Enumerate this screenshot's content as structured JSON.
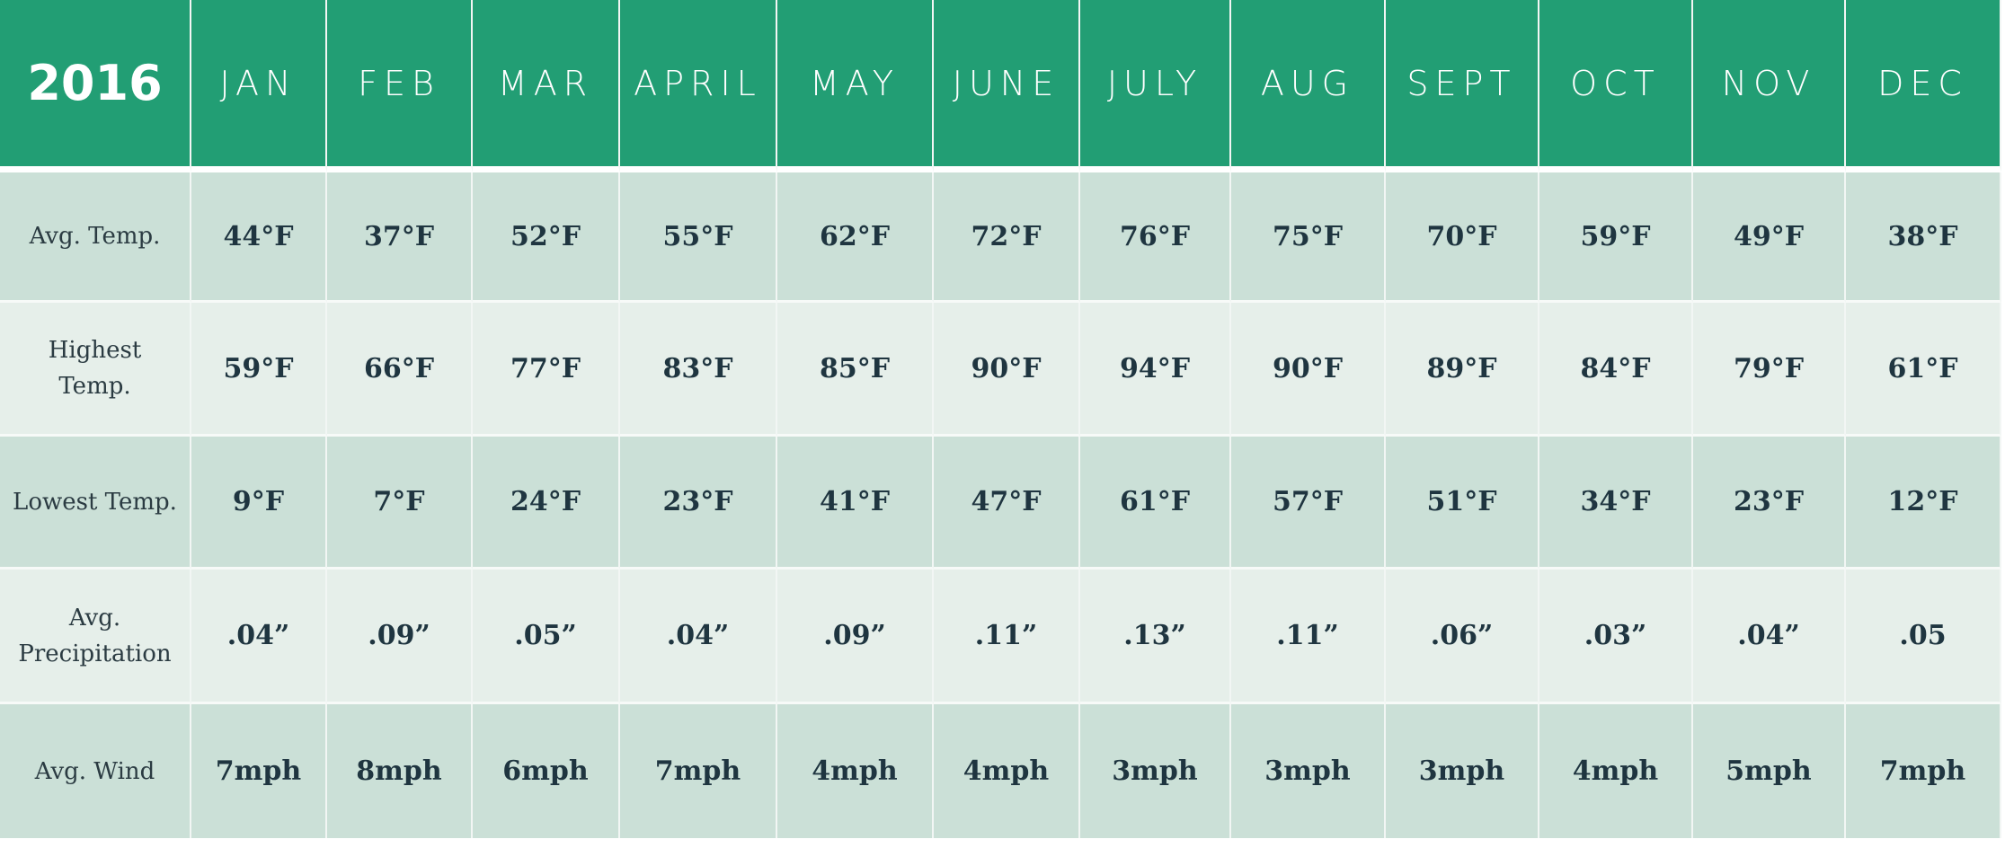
{
  "header": {
    "year": "2016",
    "months": [
      "JAN",
      "FEB",
      "MAR",
      "APRIL",
      "MAY",
      "JUNE",
      "JULY",
      "AUG",
      "SEPT",
      "OCT",
      "NOV",
      "DEC"
    ]
  },
  "rows": [
    {
      "label": "Avg. Temp.",
      "values": [
        "44°F",
        "37°F",
        "52°F",
        "55°F",
        "62°F",
        "72°F",
        "76°F",
        "75°F",
        "70°F",
        "59°F",
        "49°F",
        "38°F"
      ]
    },
    {
      "label": "Highest Temp.",
      "values": [
        "59°F",
        "66°F",
        "77°F",
        "83°F",
        "85°F",
        "90°F",
        "94°F",
        "90°F",
        "89°F",
        "84°F",
        "79°F",
        "61°F"
      ]
    },
    {
      "label": "Lowest Temp.",
      "values": [
        "9°F",
        "7°F",
        "24°F",
        "23°F",
        "41°F",
        "47°F",
        "61°F",
        "57°F",
        "51°F",
        "34°F",
        "23°F",
        "12°F"
      ]
    },
    {
      "label": "Avg. Precipitation",
      "values": [
        ".04”",
        ".09”",
        ".05”",
        ".04”",
        ".09”",
        ".11”",
        ".13”",
        ".11”",
        ".06”",
        ".03”",
        ".04”",
        ".05"
      ]
    },
    {
      "label": "Avg. Wind",
      "values": [
        "7mph",
        "8mph",
        "6mph",
        "7mph",
        "4mph",
        "4mph",
        "3mph",
        "3mph",
        "3mph",
        "4mph",
        "5mph",
        "7mph"
      ]
    }
  ],
  "colors": {
    "header": "#229e74",
    "row_dark": "#cbe0d7",
    "row_light": "#e6efea",
    "text": "#1f3540"
  }
}
